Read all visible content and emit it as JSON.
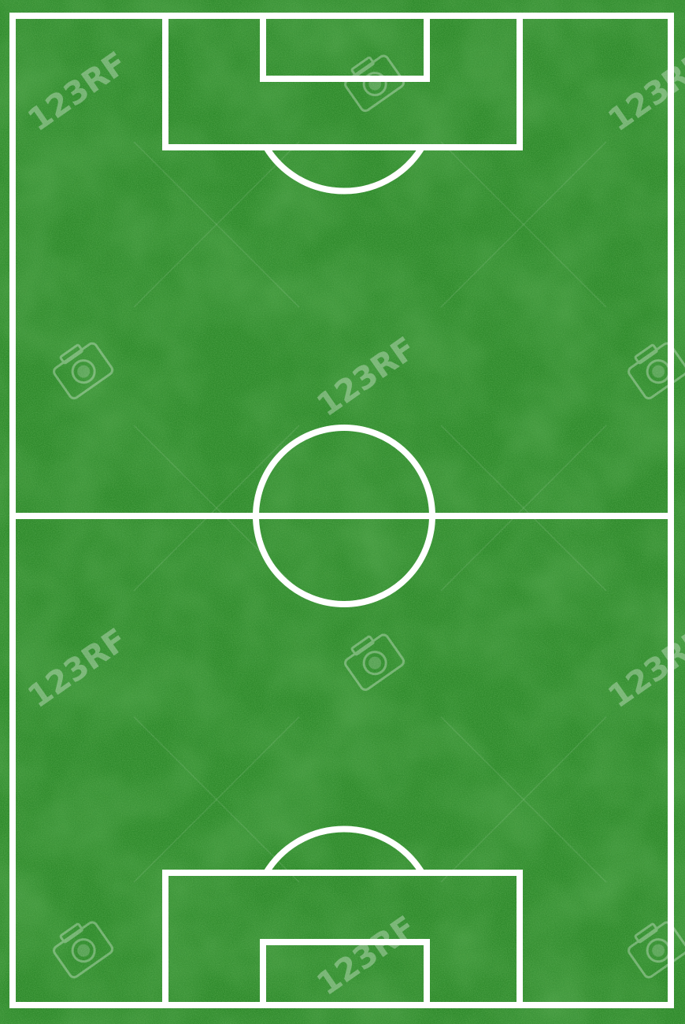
{
  "scene": {
    "subject": "soccer-pitch",
    "view": "top-down",
    "orientation": "portrait",
    "surface": "grass",
    "colors": {
      "grass_dark": "#1f6f1c",
      "grass_mid": "#2f8a2c",
      "grass_light": "#3fa43a",
      "line": "#ffffff",
      "watermark": "#ffffff"
    }
  },
  "watermark": {
    "text": "123RF",
    "icon": "camera-icon"
  }
}
